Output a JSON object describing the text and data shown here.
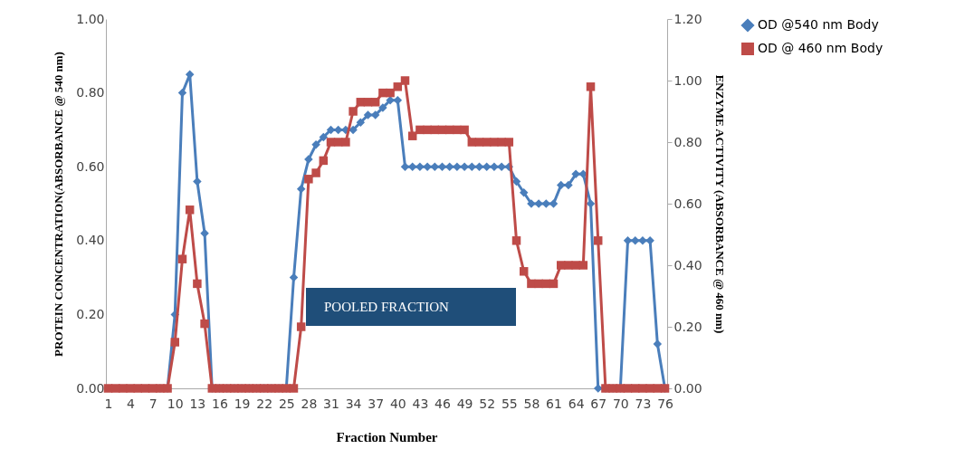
{
  "chart_data": {
    "type": "line",
    "xlabel": "Fraction Number",
    "ylabel": "PROTEIN CONCENTRATION(ABSORBANCE @ 540 nm)",
    "y2label": "ENZYME ACTIVITY (ABSORBANCE @ 460 nm)",
    "categories": [
      "1",
      null,
      null,
      "4",
      null,
      null,
      "7",
      null,
      null,
      "10",
      null,
      null,
      "13",
      null,
      null,
      "16",
      null,
      null,
      "19",
      null,
      null,
      "22",
      null,
      null,
      "25",
      null,
      null,
      "28",
      null,
      null,
      "31",
      null,
      null,
      "34",
      null,
      null,
      "37",
      null,
      null,
      "40",
      null,
      null,
      "43",
      null,
      null,
      "46",
      null,
      null,
      "49",
      null,
      null,
      "52",
      null,
      null,
      "55",
      null,
      null,
      "58",
      null,
      null,
      "61",
      null,
      null,
      "64",
      null,
      null,
      "67",
      null,
      null,
      "70",
      null,
      null,
      "73",
      null,
      null,
      "76"
    ],
    "series": [
      {
        "name": "OD @540 nm Body",
        "color": "#4a7ebb",
        "marker": "diamond",
        "values": [
          null,
          null,
          null,
          null,
          null,
          null,
          null,
          0,
          0,
          0.2,
          0.8,
          0.85,
          0.56,
          0.42,
          0,
          0,
          0,
          0,
          0,
          0,
          0,
          0,
          0,
          0,
          0,
          0.3,
          0.54,
          0.62,
          0.66,
          0.68,
          0.7,
          0.7,
          0.7,
          0.7,
          0.72,
          0.74,
          0.74,
          0.76,
          0.78,
          0.78,
          0.6,
          0.6,
          0.6,
          0.6,
          0.6,
          0.6,
          0.6,
          0.6,
          0.6,
          0.6,
          0.6,
          0.6,
          0.6,
          0.6,
          0.6,
          0.56,
          0.53,
          0.5,
          0.5,
          0.5,
          0.5,
          0.55,
          0.55,
          0.58,
          0.58,
          0.5,
          0,
          0,
          0,
          0,
          0.4,
          0.4,
          0.4,
          0.4,
          0.12,
          0
        ]
      },
      {
        "name": "OD @ 460 nm Body",
        "color": "#be4b48",
        "marker": "square",
        "axis": "y2",
        "values": [
          0,
          0,
          0,
          0,
          0,
          0,
          0,
          0,
          0,
          0.15,
          0.42,
          0.58,
          0.34,
          0.21,
          0,
          0,
          0,
          0,
          0,
          0,
          0,
          0,
          0,
          0,
          0,
          0,
          0.2,
          0.68,
          0.7,
          0.74,
          0.8,
          0.8,
          0.8,
          0.9,
          0.93,
          0.93,
          0.93,
          0.96,
          0.96,
          0.98,
          1.0,
          0.82,
          0.84,
          0.84,
          0.84,
          0.84,
          0.84,
          0.84,
          0.84,
          0.8,
          0.8,
          0.8,
          0.8,
          0.8,
          0.8,
          0.48,
          0.38,
          0.34,
          0.34,
          0.34,
          0.34,
          0.4,
          0.4,
          0.4,
          0.4,
          0.98,
          0.48,
          0,
          0,
          0,
          0,
          0,
          0,
          0,
          0,
          0
        ]
      }
    ],
    "ylim": [
      0,
      1
    ],
    "yticks": [
      {
        "value": 0,
        "label": "0.00"
      },
      {
        "value": 0.2,
        "label": "0.20"
      },
      {
        "value": 0.4,
        "label": "0.40"
      },
      {
        "value": 0.6,
        "label": "0.60"
      },
      {
        "value": 0.8,
        "label": "0.80"
      },
      {
        "value": 1,
        "label": "1.00"
      }
    ],
    "y2lim": [
      0,
      1.2
    ],
    "y2ticks": [
      {
        "value": 0,
        "label": "0.00"
      },
      {
        "value": 0.2,
        "label": "0.20"
      },
      {
        "value": 0.4,
        "label": "0.40"
      },
      {
        "value": 0.6,
        "label": "0.60"
      },
      {
        "value": 0.8,
        "label": "0.80"
      },
      {
        "value": 1,
        "label": "1.00"
      },
      {
        "value": 1.2,
        "label": "1.20"
      }
    ],
    "legend": "right",
    "grid": false,
    "annotations": [
      "POOLED FRACTION"
    ]
  }
}
